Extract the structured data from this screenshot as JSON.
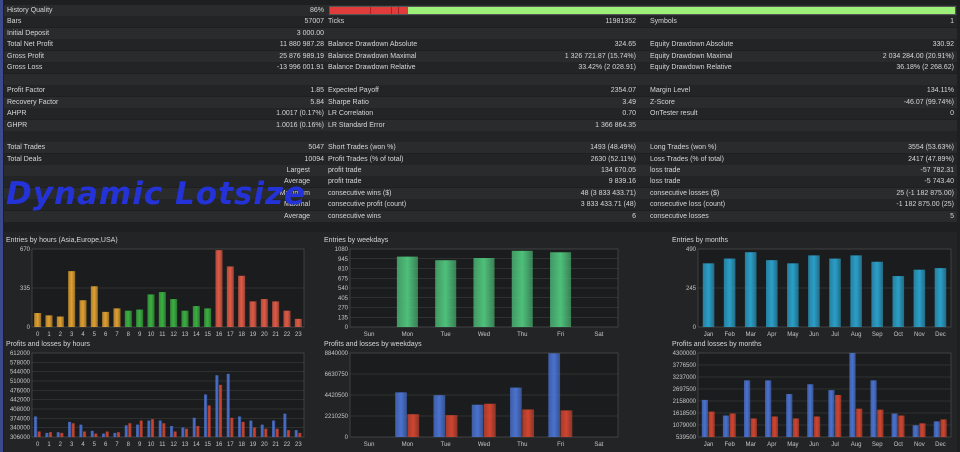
{
  "colors": {
    "accent": "#2433d8",
    "good": "#9df07a",
    "bad": "#e03c3c"
  },
  "summary": {
    "history_quality": {
      "label": "History Quality",
      "value": "86%",
      "fraction": 0.86
    },
    "bars": {
      "label": "Bars",
      "value": "57007"
    },
    "ticks": {
      "label": "Ticks",
      "value": "11981352"
    },
    "symbols": {
      "label": "Symbols",
      "value": "1"
    },
    "initial_deposit": {
      "label": "Initial Deposit",
      "value": "3 000.00"
    },
    "total_net_profit": {
      "label": "Total Net Profit",
      "value": "11 880 987.28"
    },
    "gross_profit": {
      "label": "Gross Profit",
      "value": "25 876 989.19"
    },
    "gross_loss": {
      "label": "Gross Loss",
      "value": "-13 996 001.91"
    },
    "bal_dd_abs": {
      "label": "Balance Drawdown Absolute",
      "value": "324.65"
    },
    "bal_dd_max": {
      "label": "Balance Drawdown Maximal",
      "value": "1 326 721.87 (15.74%)"
    },
    "bal_dd_rel": {
      "label": "Balance Drawdown Relative",
      "value": "33.42% (2 028.91)"
    },
    "eq_dd_abs": {
      "label": "Equity Drawdown Absolute",
      "value": "330.92"
    },
    "eq_dd_max": {
      "label": "Equity Drawdown Maximal",
      "value": "2 034 284.00 (20.91%)"
    },
    "eq_dd_rel": {
      "label": "Equity Drawdown Relative",
      "value": "36.18% (2 268.62)"
    },
    "profit_factor": {
      "label": "Profit Factor",
      "value": "1.85"
    },
    "recovery_factor": {
      "label": "Recovery Factor",
      "value": "5.84"
    },
    "ahpr": {
      "label": "AHPR",
      "value": "1.0017 (0.17%)"
    },
    "ghpr": {
      "label": "GHPR",
      "value": "1.0016 (0.16%)"
    },
    "expected_payoff": {
      "label": "Expected Payoff",
      "value": "2354.07"
    },
    "sharpe_ratio": {
      "label": "Sharpe Ratio",
      "value": "3.49"
    },
    "lr_correlation": {
      "label": "LR Correlation",
      "value": "0.70"
    },
    "lr_std_error": {
      "label": "LR Standard Error",
      "value": "1 366 864.35"
    },
    "margin_level": {
      "label": "Margin Level",
      "value": "134.11%"
    },
    "z_score": {
      "label": "Z-Score",
      "value": "-46.07 (99.74%)"
    },
    "ontester": {
      "label": "OnTester result",
      "value": "0"
    },
    "total_trades": {
      "label": "Total Trades",
      "value": "5047"
    },
    "total_deals": {
      "label": "Total Deals",
      "value": "10094"
    },
    "short_trades": {
      "label": "Short Trades (won %)",
      "value": "1493 (48.49%)"
    },
    "profit_trades": {
      "label": "Profit Trades (% of total)",
      "value": "2630 (52.11%)"
    },
    "long_trades": {
      "label": "Long Trades (won %)",
      "value": "3554 (53.63%)"
    },
    "loss_trades": {
      "label": "Loss Trades (% of total)",
      "value": "2417 (47.89%)"
    },
    "largest": {
      "label": "Largest",
      "p_label": "profit trade",
      "p_value": "134 670.05",
      "l_label": "loss trade",
      "l_value": "-57 782.31"
    },
    "average": {
      "label": "Average",
      "p_label": "profit trade",
      "p_value": "9 839.16",
      "l_label": "loss trade",
      "l_value": "-5 743.40"
    },
    "maximum": {
      "label": "Maximum",
      "p_label": "consecutive wins ($)",
      "p_value": "48 (3 833 433.71)",
      "l_label": "consecutive losses ($)",
      "l_value": "25 (-1 182 875.00)"
    },
    "maximal": {
      "label": "Maximal",
      "p_label": "consecutive profit (count)",
      "p_value": "3 833 433.71 (48)",
      "l_label": "consecutive loss (count)",
      "l_value": "-1 182 875.00 (25)"
    },
    "average2": {
      "label": "Average",
      "p_label": "consecutive wins",
      "p_value": "6",
      "l_label": "consecutive losses",
      "l_value": "5"
    }
  },
  "watermark": "Dynamic Lotsize",
  "chart_data": [
    {
      "id": "entries-hours",
      "type": "bar",
      "title": "Entries by hours (Asia,Europe,USA)",
      "categories": [
        "0",
        "1",
        "2",
        "3",
        "4",
        "5",
        "6",
        "7",
        "8",
        "9",
        "10",
        "11",
        "12",
        "13",
        "14",
        "15",
        "16",
        "17",
        "18",
        "19",
        "20",
        "21",
        "22",
        "23"
      ],
      "values": [
        120,
        100,
        90,
        480,
        230,
        350,
        130,
        160,
        140,
        150,
        280,
        300,
        240,
        140,
        180,
        160,
        660,
        520,
        440,
        220,
        240,
        220,
        140,
        70
      ],
      "ylim": [
        0,
        670
      ],
      "yticks": [
        "670",
        "335",
        "0"
      ],
      "region_colors": [
        "#e0a030",
        "#e0a030",
        "#e0a030",
        "#e0a030",
        "#e0a030",
        "#e0a030",
        "#e0a030",
        "#e0a030",
        "#3ab040",
        "#3ab040",
        "#3ab040",
        "#3ab040",
        "#3ab040",
        "#3ab040",
        "#3ab040",
        "#3ab040",
        "#e05a45",
        "#e05a45",
        "#e05a45",
        "#e05a45",
        "#e05a45",
        "#e05a45",
        "#e05a45",
        "#e05a45"
      ]
    },
    {
      "id": "entries-weekdays",
      "type": "bar",
      "title": "Entries by weekdays",
      "categories": [
        "Sun",
        "Mon",
        "Tue",
        "Wed",
        "Thu",
        "Fri",
        "Sat"
      ],
      "values": [
        0,
        975,
        925,
        955,
        1055,
        1035,
        0
      ],
      "ylim": [
        0,
        1080
      ],
      "yticks": [
        "1080",
        "945",
        "810",
        "675",
        "540",
        "405",
        "270",
        "135",
        "0"
      ],
      "color": "#4ec07a"
    },
    {
      "id": "entries-months",
      "type": "bar",
      "title": "Entries by months",
      "categories": [
        "Jan",
        "Feb",
        "Mar",
        "Apr",
        "May",
        "Jun",
        "Jul",
        "Aug",
        "Sep",
        "Oct",
        "Nov",
        "Dec"
      ],
      "values": [
        400,
        430,
        470,
        420,
        400,
        450,
        430,
        450,
        410,
        320,
        360,
        370
      ],
      "ylim": [
        0,
        490
      ],
      "yticks": [
        "490",
        "245",
        "0"
      ],
      "color": "#2a9fc8"
    },
    {
      "id": "pl-hours",
      "type": "bar",
      "title": "Profits and losses by hours",
      "categories": [
        "0",
        "1",
        "2",
        "3",
        "4",
        "5",
        "6",
        "7",
        "8",
        "9",
        "10",
        "11",
        "12",
        "13",
        "14",
        "15",
        "16",
        "17",
        "18",
        "19",
        "20",
        "21",
        "22",
        "23"
      ],
      "series": [
        {
          "name": "Profit",
          "color": "#4a72d0",
          "values": [
            150000,
            30000,
            35000,
            110000,
            90000,
            45000,
            25000,
            30000,
            85000,
            90000,
            120000,
            120000,
            80000,
            70000,
            140000,
            310000,
            450000,
            460000,
            150000,
            120000,
            90000,
            120000,
            170000,
            50000
          ]
        },
        {
          "name": "Loss",
          "color": "#d04530",
          "values": [
            40000,
            35000,
            30000,
            100000,
            40000,
            25000,
            40000,
            35000,
            100000,
            120000,
            130000,
            100000,
            40000,
            60000,
            80000,
            230000,
            380000,
            140000,
            110000,
            70000,
            60000,
            60000,
            50000,
            30000
          ]
        }
      ],
      "ylim": [
        0,
        612000
      ],
      "yticks": [
        "612000",
        "578000",
        "544000",
        "510000",
        "476000",
        "442000",
        "408000",
        "374000",
        "340000",
        "306000"
      ]
    },
    {
      "id": "pl-weekdays",
      "type": "bar",
      "title": "Profits and losses by weekdays",
      "categories": [
        "Sun",
        "Mon",
        "Tue",
        "Wed",
        "Thu",
        "Fri",
        "Sat"
      ],
      "series": [
        {
          "name": "Profit",
          "color": "#4a72d0",
          "values": [
            0,
            4700000,
            4400000,
            3400000,
            5200000,
            8800000,
            0
          ]
        },
        {
          "name": "Loss",
          "color": "#d04530",
          "values": [
            0,
            2400000,
            2300000,
            3500000,
            2900000,
            2800000,
            0
          ]
        }
      ],
      "ylim": [
        0,
        8840000
      ],
      "yticks": [
        "8840000",
        "6630750",
        "4420500",
        "2210250",
        "0"
      ]
    },
    {
      "id": "pl-months",
      "type": "bar",
      "title": "Profits and losses by months",
      "categories": [
        "Jan",
        "Feb",
        "Mar",
        "Apr",
        "May",
        "Jun",
        "Jul",
        "Aug",
        "Sep",
        "Oct",
        "Nov",
        "Dec"
      ],
      "series": [
        {
          "name": "Profit",
          "color": "#4a72d0",
          "values": [
            1900000,
            1100000,
            2900000,
            2900000,
            2200000,
            2700000,
            2400000,
            4300000,
            2900000,
            1200000,
            600000,
            800000
          ]
        },
        {
          "name": "Loss",
          "color": "#d04530",
          "values": [
            1300000,
            1200000,
            950000,
            1050000,
            950000,
            1050000,
            2150000,
            1450000,
            1400000,
            1100000,
            700000,
            900000
          ]
        }
      ],
      "ylim": [
        0,
        4300000
      ],
      "yticks": [
        "4300000",
        "3776500",
        "3237000",
        "2697500",
        "2158000",
        "1618500",
        "1079000",
        "539500"
      ]
    }
  ]
}
